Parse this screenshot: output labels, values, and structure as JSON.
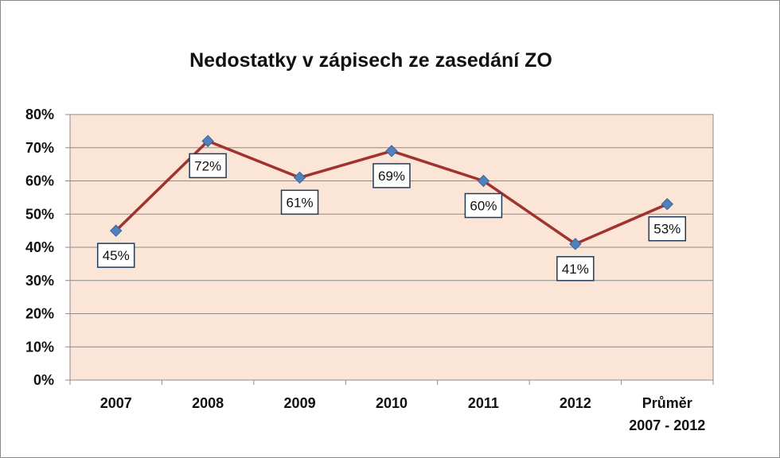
{
  "chart_data": {
    "type": "line",
    "title": "Nedostatky v zápisech ze zasedání ZO",
    "categories": [
      [
        "2007"
      ],
      [
        "2008"
      ],
      [
        "2009"
      ],
      [
        "2010"
      ],
      [
        "2011"
      ],
      [
        "2012"
      ],
      [
        "Průměr",
        "2007 - 2012"
      ]
    ],
    "series": [
      {
        "values": [
          45,
          72,
          61,
          69,
          60,
          41,
          53
        ],
        "data_labels": [
          "45%",
          "72%",
          "61%",
          "69%",
          "60%",
          "41%",
          "53%"
        ]
      }
    ],
    "y_ticks": [
      "0%",
      "10%",
      "20%",
      "30%",
      "40%",
      "50%",
      "60%",
      "70%",
      "80%"
    ],
    "ylim": [
      0,
      80
    ],
    "grid": true,
    "colors": {
      "plot_background": "#fbe5d6",
      "line": "#a0322f",
      "marker": "#4f81bd",
      "gridline": "#8c8c8c"
    }
  }
}
